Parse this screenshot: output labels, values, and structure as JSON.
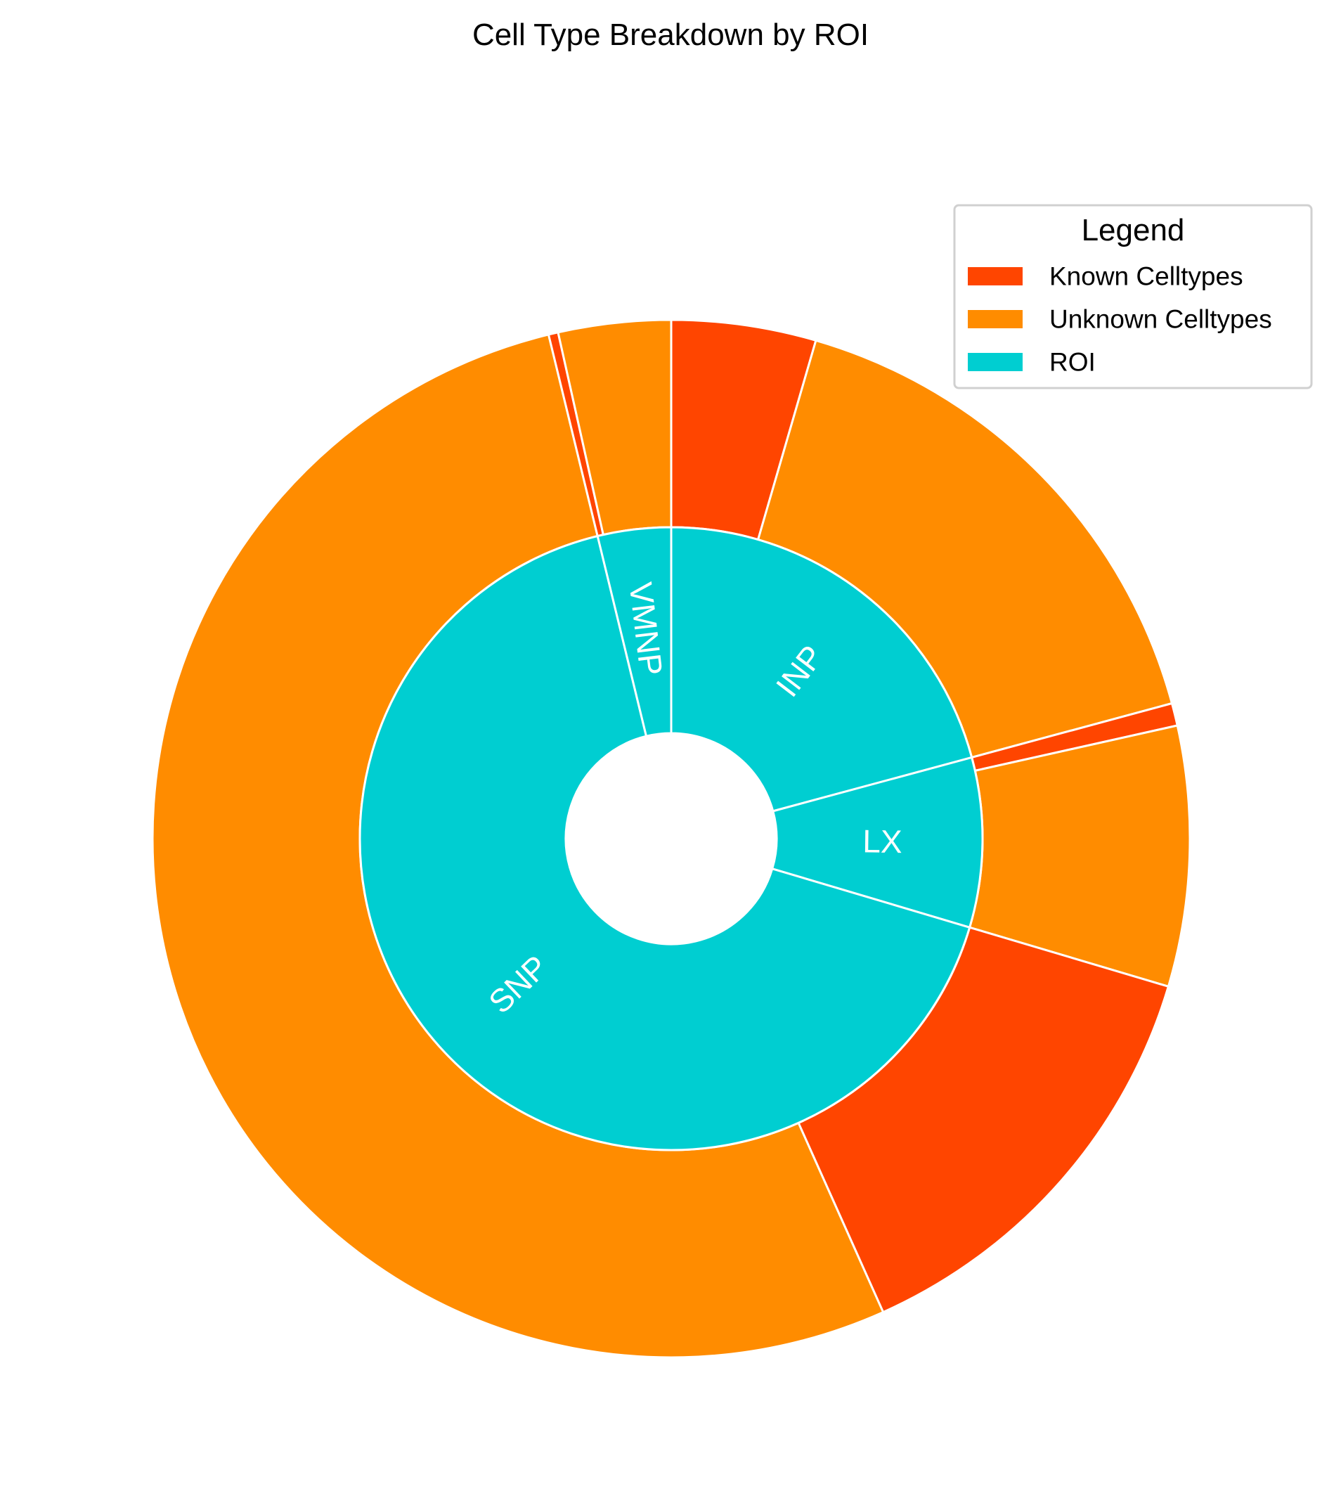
{
  "chart_data": {
    "type": "pie",
    "subtype": "nested-donut",
    "title": "Cell Type Breakdown by ROI",
    "inner_ring": {
      "series_name": "ROI",
      "categories": [
        "INP",
        "LX",
        "SNP",
        "VMNP"
      ],
      "values": [
        20.8,
        8.8,
        66.6,
        3.8
      ]
    },
    "outer_ring": {
      "segments": [
        {
          "roi": "INP",
          "type": "Known Celltypes",
          "value": 4.5
        },
        {
          "roi": "INP",
          "type": "Unknown Celltypes",
          "value": 16.3
        },
        {
          "roi": "LX",
          "type": "Known Celltypes",
          "value": 0.7
        },
        {
          "roi": "LX",
          "type": "Unknown Celltypes",
          "value": 8.1
        },
        {
          "roi": "SNP",
          "type": "Known Celltypes",
          "value": 13.7
        },
        {
          "roi": "SNP",
          "type": "Unknown Celltypes",
          "value": 52.9
        },
        {
          "roi": "VMNP",
          "type": "Known Celltypes",
          "value": 0.3
        },
        {
          "roi": "VMNP",
          "type": "Unknown Celltypes",
          "value": 3.5
        }
      ]
    },
    "legend": {
      "title": "Legend",
      "placement": "top-right",
      "entries": [
        {
          "label": "Known Celltypes",
          "color": "#FF4500"
        },
        {
          "label": "Unknown Celltypes",
          "color": "#FF8C00"
        },
        {
          "label": "ROI",
          "color": "#00CED1"
        }
      ]
    },
    "colors": {
      "known": "#FF4500",
      "unknown": "#FF8C00",
      "roi": "#00CED1",
      "edge": "#ffffff"
    },
    "start": "12 o'clock",
    "direction": "clockwise"
  }
}
